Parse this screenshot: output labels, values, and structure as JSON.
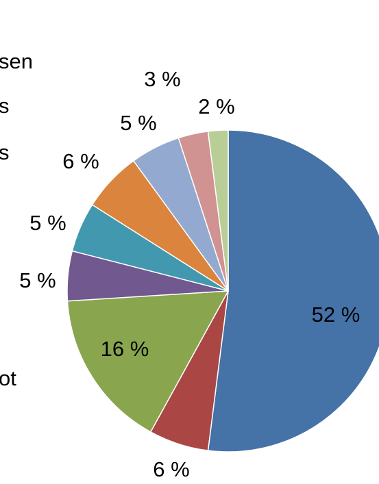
{
  "chart_data": {
    "type": "pie",
    "categories": [
      null,
      null,
      null,
      null,
      null,
      null,
      null,
      null,
      null
    ],
    "values": [
      52,
      6,
      16,
      5,
      5,
      6,
      5,
      3,
      2
    ],
    "value_labels": [
      "52 %",
      "6 %",
      "16 %",
      "5 %",
      "5 %",
      "6 %",
      "5 %",
      "3 %",
      "2 %"
    ],
    "colors": [
      "#4572a7",
      "#aa4643",
      "#89a54e",
      "#71588f",
      "#4198af",
      "#db843d",
      "#93a9cf",
      "#d19392",
      "#b9cd96"
    ],
    "legend": [
      "sen",
      "s",
      "s",
      "ot"
    ]
  }
}
